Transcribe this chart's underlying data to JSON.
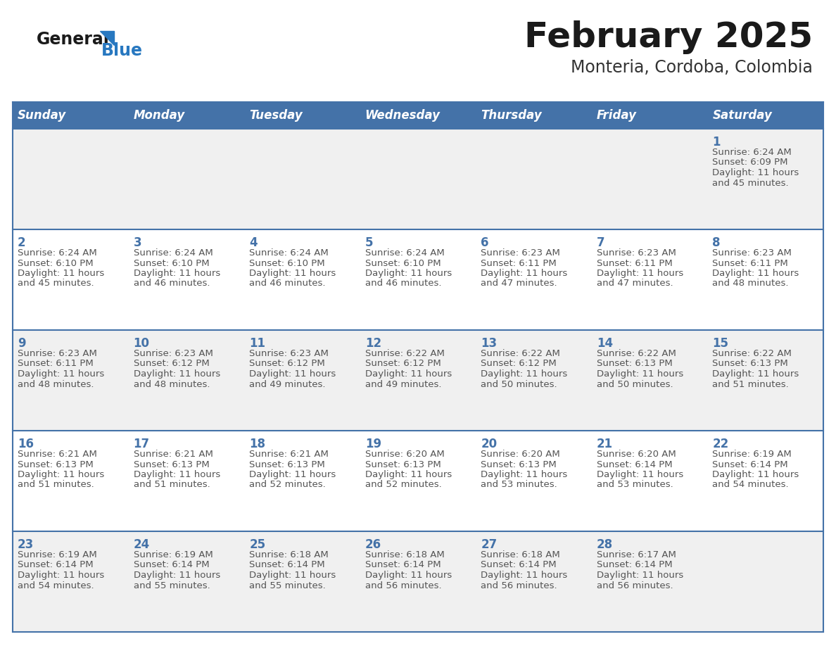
{
  "title": "February 2025",
  "subtitle": "Monteria, Cordoba, Colombia",
  "days_of_week": [
    "Sunday",
    "Monday",
    "Tuesday",
    "Wednesday",
    "Thursday",
    "Friday",
    "Saturday"
  ],
  "header_bg": "#4472a8",
  "header_text": "#ffffff",
  "row_bg_even": "#f0f0f0",
  "row_bg_odd": "#ffffff",
  "cell_border": "#4472a8",
  "day_number_color": "#4472a8",
  "info_text_color": "#555555",
  "title_color": "#1a1a1a",
  "subtitle_color": "#333333",
  "logo_general_color": "#1a1a1a",
  "logo_blue_color": "#2878c0",
  "calendar": [
    [
      {
        "day": "",
        "sunrise": "",
        "sunset": "",
        "daylight": ""
      },
      {
        "day": "",
        "sunrise": "",
        "sunset": "",
        "daylight": ""
      },
      {
        "day": "",
        "sunrise": "",
        "sunset": "",
        "daylight": ""
      },
      {
        "day": "",
        "sunrise": "",
        "sunset": "",
        "daylight": ""
      },
      {
        "day": "",
        "sunrise": "",
        "sunset": "",
        "daylight": ""
      },
      {
        "day": "",
        "sunrise": "",
        "sunset": "",
        "daylight": ""
      },
      {
        "day": "1",
        "sunrise": "6:24 AM",
        "sunset": "6:09 PM",
        "daylight": "11 hours\nand 45 minutes."
      }
    ],
    [
      {
        "day": "2",
        "sunrise": "6:24 AM",
        "sunset": "6:10 PM",
        "daylight": "11 hours\nand 45 minutes."
      },
      {
        "day": "3",
        "sunrise": "6:24 AM",
        "sunset": "6:10 PM",
        "daylight": "11 hours\nand 46 minutes."
      },
      {
        "day": "4",
        "sunrise": "6:24 AM",
        "sunset": "6:10 PM",
        "daylight": "11 hours\nand 46 minutes."
      },
      {
        "day": "5",
        "sunrise": "6:24 AM",
        "sunset": "6:10 PM",
        "daylight": "11 hours\nand 46 minutes."
      },
      {
        "day": "6",
        "sunrise": "6:23 AM",
        "sunset": "6:11 PM",
        "daylight": "11 hours\nand 47 minutes."
      },
      {
        "day": "7",
        "sunrise": "6:23 AM",
        "sunset": "6:11 PM",
        "daylight": "11 hours\nand 47 minutes."
      },
      {
        "day": "8",
        "sunrise": "6:23 AM",
        "sunset": "6:11 PM",
        "daylight": "11 hours\nand 48 minutes."
      }
    ],
    [
      {
        "day": "9",
        "sunrise": "6:23 AM",
        "sunset": "6:11 PM",
        "daylight": "11 hours\nand 48 minutes."
      },
      {
        "day": "10",
        "sunrise": "6:23 AM",
        "sunset": "6:12 PM",
        "daylight": "11 hours\nand 48 minutes."
      },
      {
        "day": "11",
        "sunrise": "6:23 AM",
        "sunset": "6:12 PM",
        "daylight": "11 hours\nand 49 minutes."
      },
      {
        "day": "12",
        "sunrise": "6:22 AM",
        "sunset": "6:12 PM",
        "daylight": "11 hours\nand 49 minutes."
      },
      {
        "day": "13",
        "sunrise": "6:22 AM",
        "sunset": "6:12 PM",
        "daylight": "11 hours\nand 50 minutes."
      },
      {
        "day": "14",
        "sunrise": "6:22 AM",
        "sunset": "6:13 PM",
        "daylight": "11 hours\nand 50 minutes."
      },
      {
        "day": "15",
        "sunrise": "6:22 AM",
        "sunset": "6:13 PM",
        "daylight": "11 hours\nand 51 minutes."
      }
    ],
    [
      {
        "day": "16",
        "sunrise": "6:21 AM",
        "sunset": "6:13 PM",
        "daylight": "11 hours\nand 51 minutes."
      },
      {
        "day": "17",
        "sunrise": "6:21 AM",
        "sunset": "6:13 PM",
        "daylight": "11 hours\nand 51 minutes."
      },
      {
        "day": "18",
        "sunrise": "6:21 AM",
        "sunset": "6:13 PM",
        "daylight": "11 hours\nand 52 minutes."
      },
      {
        "day": "19",
        "sunrise": "6:20 AM",
        "sunset": "6:13 PM",
        "daylight": "11 hours\nand 52 minutes."
      },
      {
        "day": "20",
        "sunrise": "6:20 AM",
        "sunset": "6:13 PM",
        "daylight": "11 hours\nand 53 minutes."
      },
      {
        "day": "21",
        "sunrise": "6:20 AM",
        "sunset": "6:14 PM",
        "daylight": "11 hours\nand 53 minutes."
      },
      {
        "day": "22",
        "sunrise": "6:19 AM",
        "sunset": "6:14 PM",
        "daylight": "11 hours\nand 54 minutes."
      }
    ],
    [
      {
        "day": "23",
        "sunrise": "6:19 AM",
        "sunset": "6:14 PM",
        "daylight": "11 hours\nand 54 minutes."
      },
      {
        "day": "24",
        "sunrise": "6:19 AM",
        "sunset": "6:14 PM",
        "daylight": "11 hours\nand 55 minutes."
      },
      {
        "day": "25",
        "sunrise": "6:18 AM",
        "sunset": "6:14 PM",
        "daylight": "11 hours\nand 55 minutes."
      },
      {
        "day": "26",
        "sunrise": "6:18 AM",
        "sunset": "6:14 PM",
        "daylight": "11 hours\nand 56 minutes."
      },
      {
        "day": "27",
        "sunrise": "6:18 AM",
        "sunset": "6:14 PM",
        "daylight": "11 hours\nand 56 minutes."
      },
      {
        "day": "28",
        "sunrise": "6:17 AM",
        "sunset": "6:14 PM",
        "daylight": "11 hours\nand 56 minutes."
      },
      {
        "day": "",
        "sunrise": "",
        "sunset": "",
        "daylight": ""
      }
    ]
  ]
}
